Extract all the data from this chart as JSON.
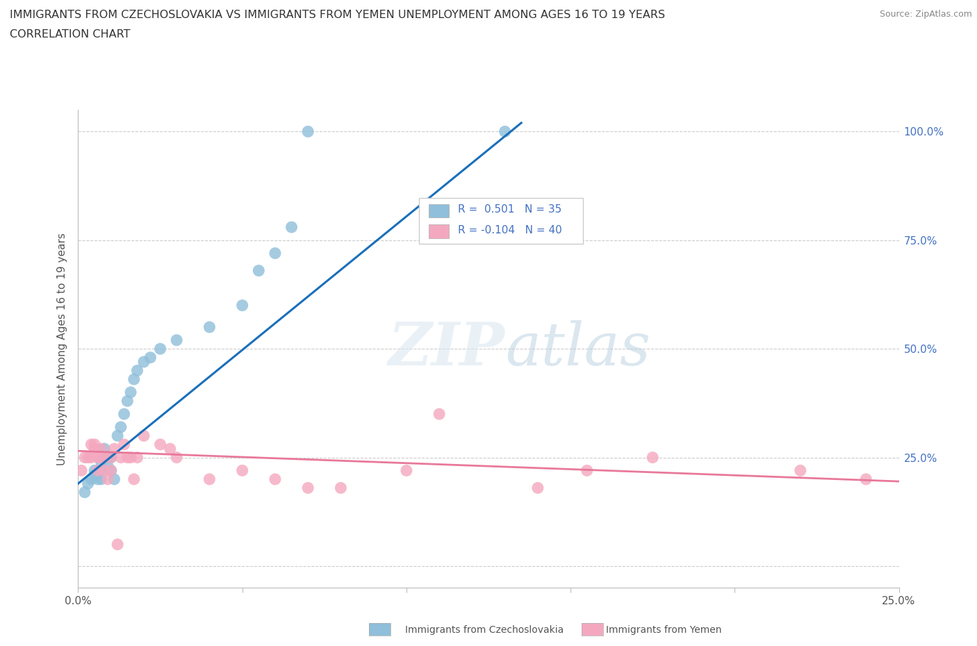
{
  "title_line1": "IMMIGRANTS FROM CZECHOSLOVAKIA VS IMMIGRANTS FROM YEMEN UNEMPLOYMENT AMONG AGES 16 TO 19 YEARS",
  "title_line2": "CORRELATION CHART",
  "source_text": "Source: ZipAtlas.com",
  "ylabel": "Unemployment Among Ages 16 to 19 years",
  "watermark_zip": "ZIP",
  "watermark_atlas": "atlas",
  "xlim": [
    0.0,
    0.25
  ],
  "ylim": [
    -0.05,
    1.05
  ],
  "color_czech": "#8fbfda",
  "color_yemen": "#f4a8bf",
  "color_line_czech": "#1a6fba",
  "color_line_yemen": "#e8799a",
  "czech_x": [
    0.002,
    0.003,
    0.004,
    0.005,
    0.005,
    0.006,
    0.006,
    0.007,
    0.007,
    0.007,
    0.008,
    0.008,
    0.009,
    0.009,
    0.01,
    0.01,
    0.011,
    0.012,
    0.013,
    0.014,
    0.015,
    0.016,
    0.017,
    0.018,
    0.02,
    0.022,
    0.025,
    0.03,
    0.04,
    0.05,
    0.055,
    0.06,
    0.065,
    0.07,
    0.13
  ],
  "czech_y": [
    0.17,
    0.19,
    0.2,
    0.22,
    0.21,
    0.22,
    0.2,
    0.2,
    0.22,
    0.24,
    0.25,
    0.27,
    0.25,
    0.23,
    0.25,
    0.22,
    0.2,
    0.3,
    0.32,
    0.35,
    0.38,
    0.4,
    0.43,
    0.45,
    0.47,
    0.48,
    0.5,
    0.52,
    0.55,
    0.6,
    0.68,
    0.72,
    0.78,
    1.0,
    1.0
  ],
  "yemen_x": [
    0.001,
    0.002,
    0.003,
    0.004,
    0.004,
    0.005,
    0.005,
    0.006,
    0.006,
    0.007,
    0.007,
    0.008,
    0.008,
    0.009,
    0.01,
    0.01,
    0.011,
    0.012,
    0.013,
    0.014,
    0.015,
    0.016,
    0.017,
    0.018,
    0.02,
    0.025,
    0.028,
    0.03,
    0.04,
    0.05,
    0.06,
    0.07,
    0.08,
    0.1,
    0.11,
    0.14,
    0.155,
    0.175,
    0.22,
    0.24
  ],
  "yemen_y": [
    0.22,
    0.25,
    0.25,
    0.25,
    0.28,
    0.27,
    0.28,
    0.25,
    0.22,
    0.25,
    0.27,
    0.25,
    0.22,
    0.2,
    0.25,
    0.22,
    0.27,
    0.05,
    0.25,
    0.28,
    0.25,
    0.25,
    0.2,
    0.25,
    0.3,
    0.28,
    0.27,
    0.25,
    0.2,
    0.22,
    0.2,
    0.18,
    0.18,
    0.22,
    0.35,
    0.18,
    0.22,
    0.25,
    0.22,
    0.2
  ]
}
